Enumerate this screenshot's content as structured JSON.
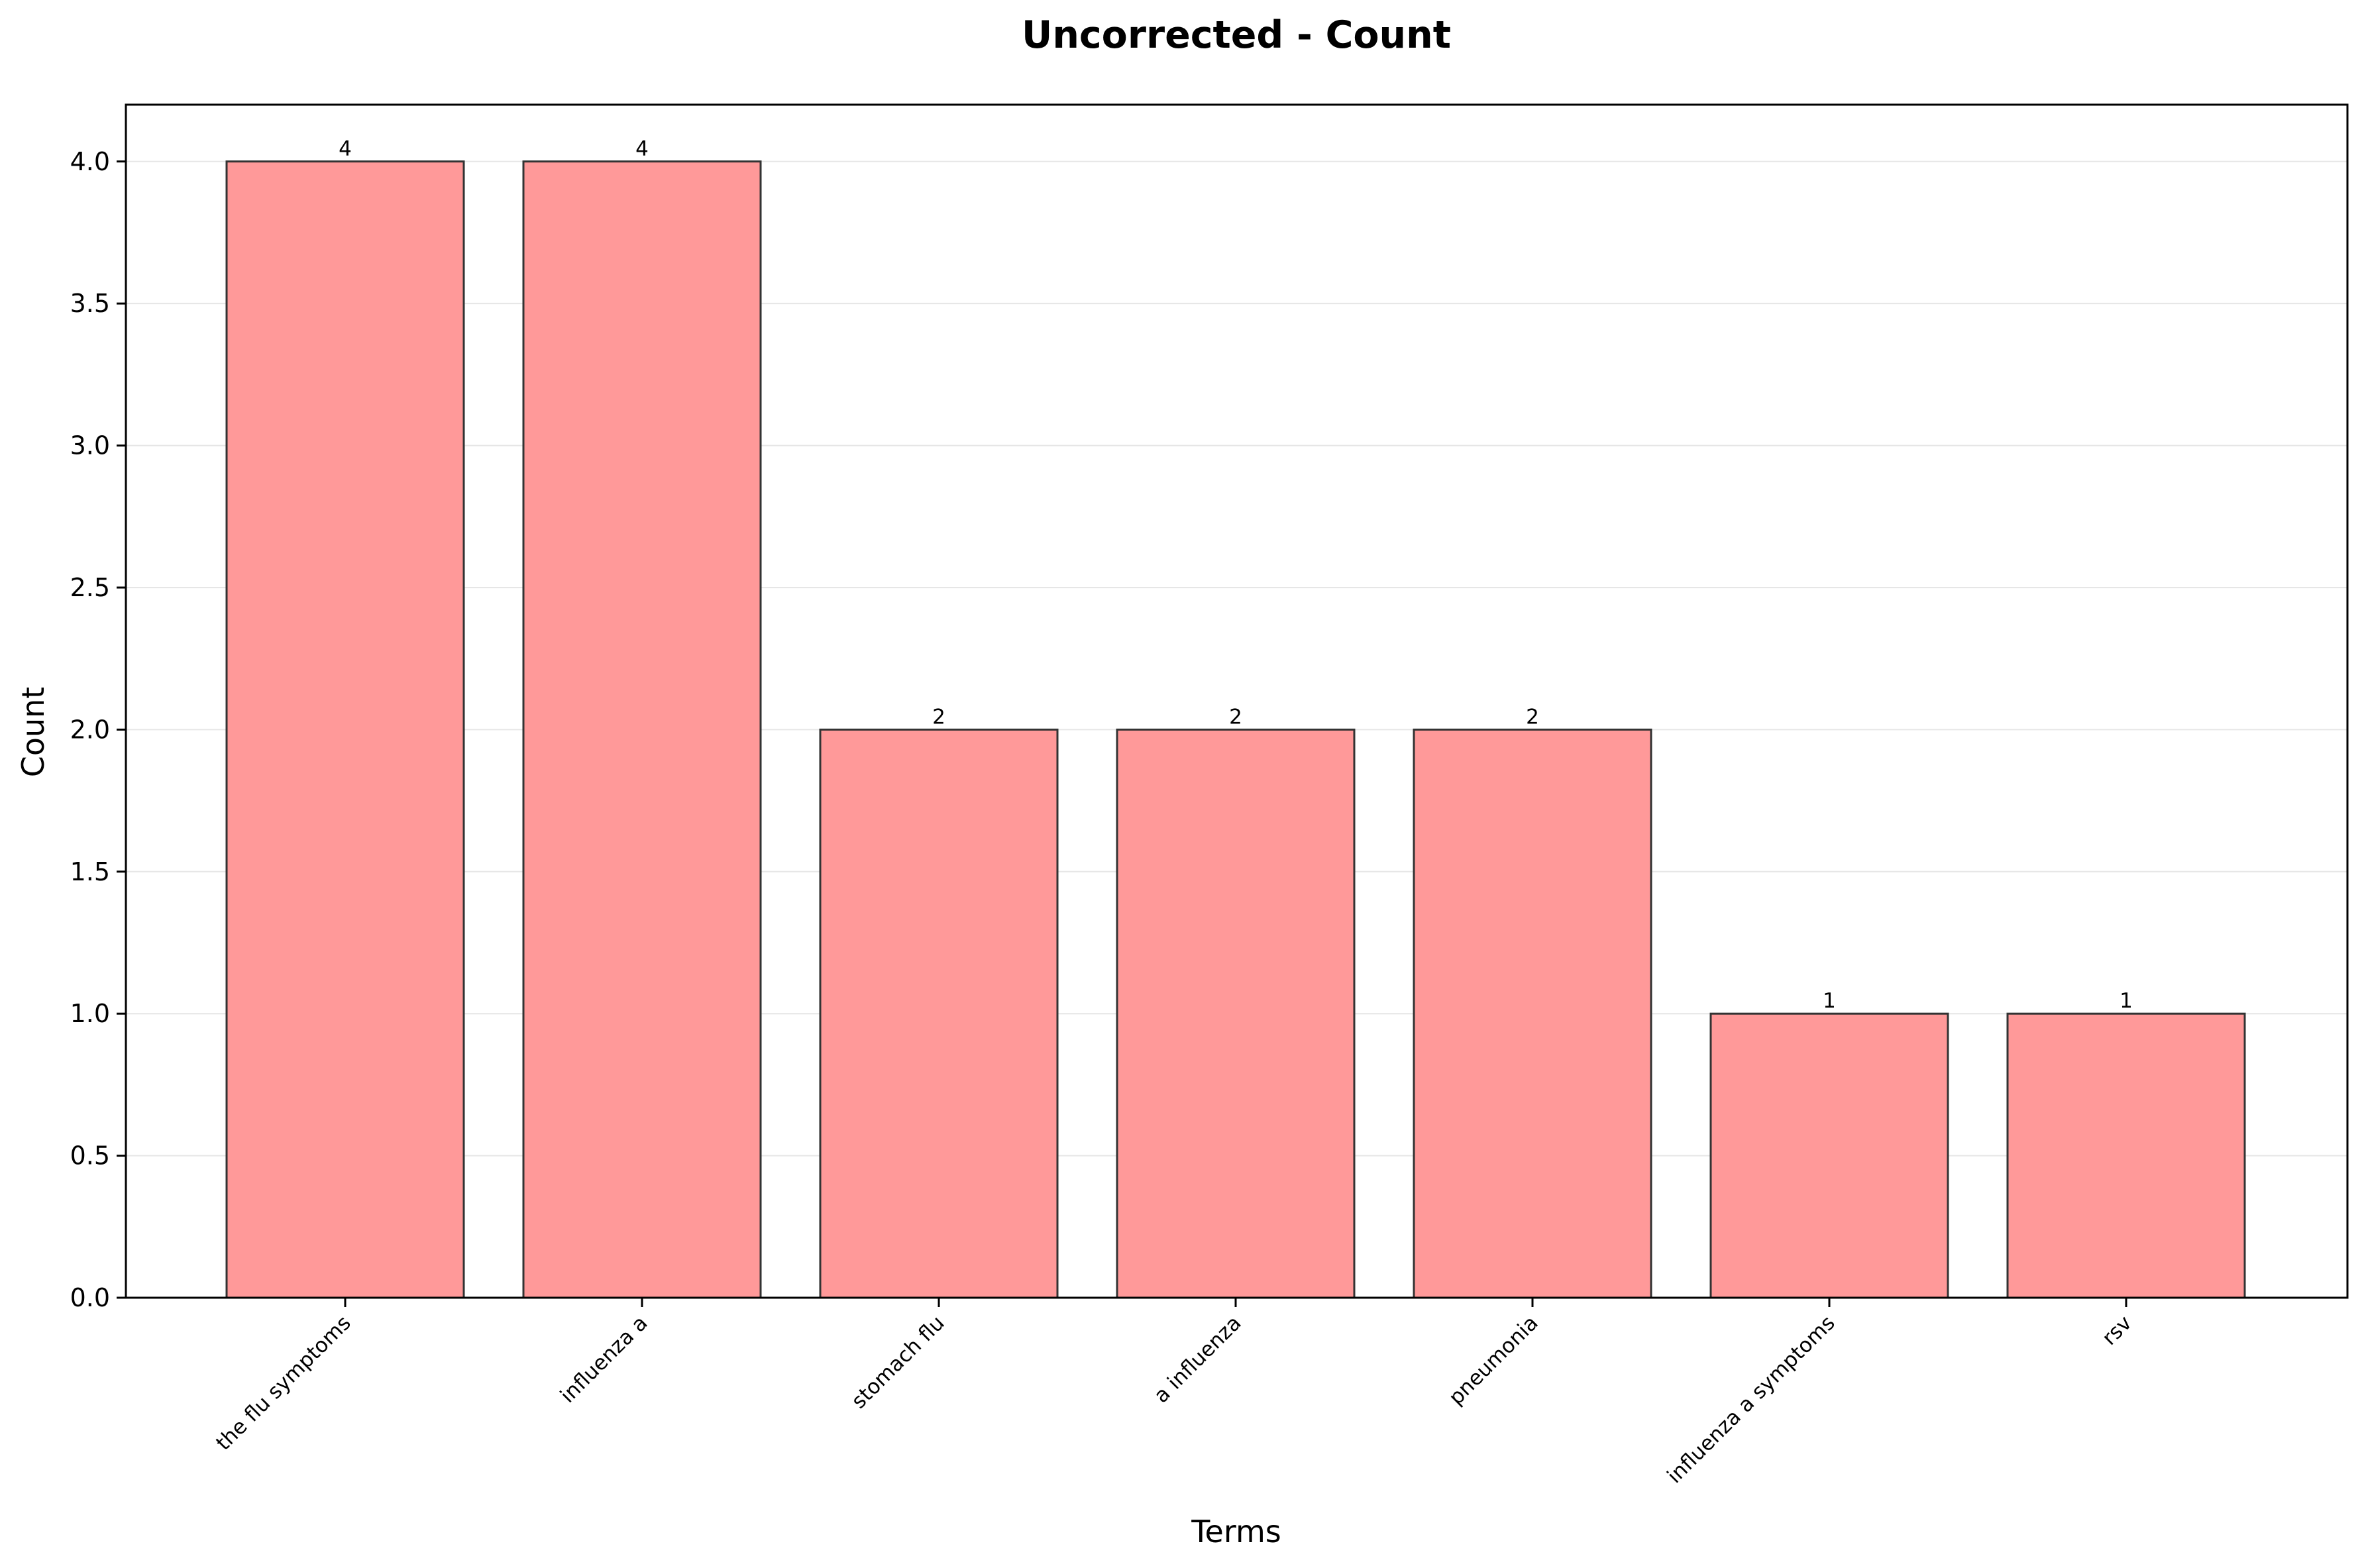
{
  "chart_data": {
    "type": "bar",
    "title": "Uncorrected - Count",
    "xlabel": "Terms",
    "ylabel": "Count",
    "categories": [
      "the flu symptoms",
      "influenza a",
      "stomach flu",
      "a influenza",
      "pneumonia",
      "influenza a symptoms",
      "rsv"
    ],
    "values": [
      4,
      4,
      2,
      2,
      2,
      1,
      1
    ],
    "value_labels": [
      "4",
      "4",
      "2",
      "2",
      "2",
      "1",
      "1"
    ],
    "ylim": [
      0,
      4.2
    ],
    "yticks": [
      "0.0",
      "0.5",
      "1.0",
      "1.5",
      "2.0",
      "2.5",
      "3.0",
      "3.5",
      "4.0"
    ],
    "grid": "y-axis only",
    "colors": {
      "bar_fill": "#ff9999",
      "bar_edge": "#333333",
      "grid": "#e6e6e6",
      "axis": "#000000"
    }
  }
}
